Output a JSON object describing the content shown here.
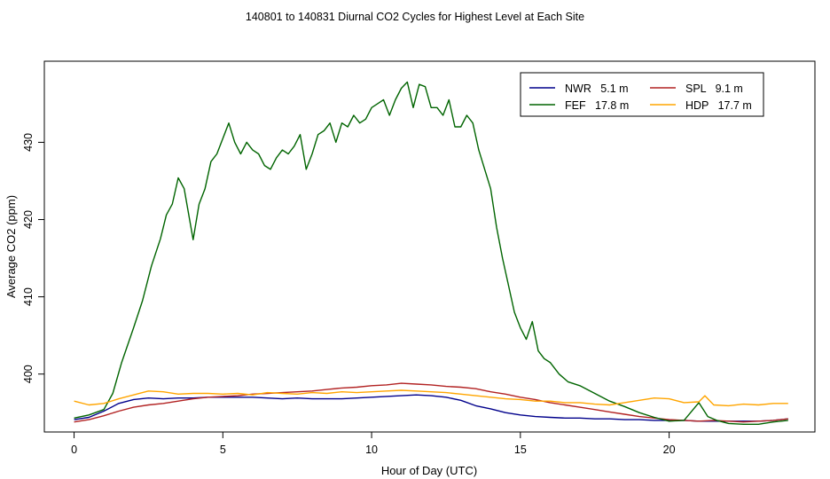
{
  "chart_data": {
    "type": "line",
    "title": "140801  to  140831 Diurnal CO2 Cycles for Highest Level at Each Site",
    "xlabel": "Hour of Day (UTC)",
    "ylabel": "Average CO2 (ppm)",
    "xlim": [
      -1,
      24.9
    ],
    "ylim": [
      392.5,
      440.5
    ],
    "xticks": [
      0,
      5,
      10,
      15,
      20
    ],
    "yticks": [
      400,
      410,
      420,
      430
    ],
    "grid": false,
    "legend_position": "top-right",
    "series": [
      {
        "name": "NWR",
        "label": "NWR   5.1 m",
        "color": "#00008b",
        "points": [
          [
            0,
            394.1
          ],
          [
            0.5,
            394.4
          ],
          [
            1,
            395.2
          ],
          [
            1.5,
            396.2
          ],
          [
            2,
            396.7
          ],
          [
            2.5,
            396.9
          ],
          [
            3,
            396.8
          ],
          [
            3.5,
            396.9
          ],
          [
            4,
            396.9
          ],
          [
            4.5,
            397.0
          ],
          [
            5,
            397.0
          ],
          [
            5.5,
            397.0
          ],
          [
            6,
            397.0
          ],
          [
            6.5,
            396.9
          ],
          [
            7,
            396.8
          ],
          [
            7.5,
            396.9
          ],
          [
            8,
            396.8
          ],
          [
            8.5,
            396.8
          ],
          [
            9,
            396.8
          ],
          [
            9.5,
            396.9
          ],
          [
            10,
            397.0
          ],
          [
            10.5,
            397.1
          ],
          [
            11,
            397.2
          ],
          [
            11.5,
            397.3
          ],
          [
            12,
            397.2
          ],
          [
            12.5,
            397.0
          ],
          [
            13,
            396.6
          ],
          [
            13.5,
            395.9
          ],
          [
            14,
            395.5
          ],
          [
            14.5,
            395.0
          ],
          [
            15,
            394.7
          ],
          [
            15.5,
            394.5
          ],
          [
            16,
            394.4
          ],
          [
            16.5,
            394.3
          ],
          [
            17,
            394.3
          ],
          [
            17.5,
            394.2
          ],
          [
            18,
            394.2
          ],
          [
            18.5,
            394.1
          ],
          [
            19,
            394.1
          ],
          [
            19.5,
            394.0
          ],
          [
            20,
            394.0
          ],
          [
            20.5,
            394.0
          ],
          [
            21,
            393.9
          ],
          [
            21.5,
            393.9
          ],
          [
            22,
            393.9
          ],
          [
            22.5,
            393.9
          ],
          [
            23,
            393.9
          ],
          [
            23.5,
            394.0
          ],
          [
            24,
            394.2
          ]
        ]
      },
      {
        "name": "SPL",
        "label": "SPL   9.1 m",
        "color": "#b22222",
        "points": [
          [
            0,
            393.8
          ],
          [
            0.5,
            394.1
          ],
          [
            1,
            394.6
          ],
          [
            1.5,
            395.2
          ],
          [
            2,
            395.7
          ],
          [
            2.5,
            396.0
          ],
          [
            3,
            396.2
          ],
          [
            3.5,
            396.5
          ],
          [
            4,
            396.8
          ],
          [
            4.5,
            397.0
          ],
          [
            5,
            397.1
          ],
          [
            5.5,
            397.2
          ],
          [
            6,
            397.4
          ],
          [
            6.5,
            397.5
          ],
          [
            7,
            397.6
          ],
          [
            7.5,
            397.7
          ],
          [
            8,
            397.8
          ],
          [
            8.5,
            398.0
          ],
          [
            9,
            398.2
          ],
          [
            9.5,
            398.3
          ],
          [
            10,
            398.5
          ],
          [
            10.5,
            398.6
          ],
          [
            11,
            398.8
          ],
          [
            11.5,
            398.7
          ],
          [
            12,
            398.6
          ],
          [
            12.5,
            398.4
          ],
          [
            13,
            398.3
          ],
          [
            13.5,
            398.1
          ],
          [
            14,
            397.7
          ],
          [
            14.5,
            397.4
          ],
          [
            15,
            397.0
          ],
          [
            15.5,
            396.7
          ],
          [
            16,
            396.3
          ],
          [
            16.5,
            396.0
          ],
          [
            17,
            395.7
          ],
          [
            17.5,
            395.4
          ],
          [
            18,
            395.1
          ],
          [
            18.5,
            394.8
          ],
          [
            19,
            394.5
          ],
          [
            19.5,
            394.3
          ],
          [
            20,
            394.1
          ],
          [
            20.5,
            394.0
          ],
          [
            21,
            393.9
          ],
          [
            21.5,
            394.0
          ],
          [
            22,
            393.9
          ],
          [
            22.5,
            393.8
          ],
          [
            23,
            393.9
          ],
          [
            23.5,
            394.0
          ],
          [
            24,
            394.2
          ]
        ]
      },
      {
        "name": "FEF",
        "label": "FEF   17.8 m",
        "color": "#006400",
        "points": [
          [
            0,
            394.3
          ],
          [
            0.5,
            394.7
          ],
          [
            1,
            395.4
          ],
          [
            1.3,
            397.5
          ],
          [
            1.6,
            401.5
          ],
          [
            2,
            406
          ],
          [
            2.3,
            409.5
          ],
          [
            2.6,
            414
          ],
          [
            2.9,
            417.5
          ],
          [
            3.1,
            420.6
          ],
          [
            3.3,
            422
          ],
          [
            3.5,
            425.4
          ],
          [
            3.7,
            424
          ],
          [
            4,
            417.4
          ],
          [
            4.2,
            422
          ],
          [
            4.4,
            424
          ],
          [
            4.6,
            427.5
          ],
          [
            4.8,
            428.5
          ],
          [
            5,
            430.5
          ],
          [
            5.2,
            432.5
          ],
          [
            5.4,
            430
          ],
          [
            5.6,
            428.5
          ],
          [
            5.8,
            430
          ],
          [
            6,
            429
          ],
          [
            6.2,
            428.5
          ],
          [
            6.4,
            427
          ],
          [
            6.6,
            426.5
          ],
          [
            6.8,
            428
          ],
          [
            7,
            429
          ],
          [
            7.2,
            428.5
          ],
          [
            7.4,
            429.5
          ],
          [
            7.6,
            431
          ],
          [
            7.8,
            426.5
          ],
          [
            8,
            428.5
          ],
          [
            8.2,
            431
          ],
          [
            8.4,
            431.5
          ],
          [
            8.6,
            432.5
          ],
          [
            8.8,
            430
          ],
          [
            9,
            432.5
          ],
          [
            9.2,
            432
          ],
          [
            9.4,
            433.5
          ],
          [
            9.6,
            432.5
          ],
          [
            9.8,
            433
          ],
          [
            10,
            434.5
          ],
          [
            10.2,
            435
          ],
          [
            10.4,
            435.5
          ],
          [
            10.6,
            433.5
          ],
          [
            10.8,
            435.5
          ],
          [
            11,
            437
          ],
          [
            11.2,
            437.8
          ],
          [
            11.4,
            434.5
          ],
          [
            11.6,
            437.5
          ],
          [
            11.8,
            437.2
          ],
          [
            12,
            434.5
          ],
          [
            12.2,
            434.5
          ],
          [
            12.4,
            433.5
          ],
          [
            12.6,
            435.5
          ],
          [
            12.8,
            432
          ],
          [
            13,
            432
          ],
          [
            13.2,
            433.5
          ],
          [
            13.4,
            432.5
          ],
          [
            13.6,
            429
          ],
          [
            13.8,
            426.5
          ],
          [
            14,
            424
          ],
          [
            14.2,
            419
          ],
          [
            14.4,
            415
          ],
          [
            14.6,
            411.5
          ],
          [
            14.8,
            408
          ],
          [
            15,
            406
          ],
          [
            15.2,
            404.5
          ],
          [
            15.4,
            406.8
          ],
          [
            15.6,
            403
          ],
          [
            15.8,
            402
          ],
          [
            16,
            401.5
          ],
          [
            16.3,
            400
          ],
          [
            16.6,
            399
          ],
          [
            17,
            398.5
          ],
          [
            17.5,
            397.5
          ],
          [
            18,
            396.5
          ],
          [
            18.5,
            395.8
          ],
          [
            19,
            395.0
          ],
          [
            19.5,
            394.4
          ],
          [
            20,
            393.9
          ],
          [
            20.5,
            394.0
          ],
          [
            21,
            396.3
          ],
          [
            21.3,
            394.5
          ],
          [
            21.6,
            394.0
          ],
          [
            22,
            393.6
          ],
          [
            22.5,
            393.5
          ],
          [
            23,
            393.5
          ],
          [
            23.5,
            393.8
          ],
          [
            24,
            394.0
          ]
        ]
      },
      {
        "name": "HDP",
        "label": "HDP   17.7 m",
        "color": "#ffa500",
        "points": [
          [
            0,
            396.5
          ],
          [
            0.5,
            396.0
          ],
          [
            1,
            396.2
          ],
          [
            1.5,
            396.8
          ],
          [
            2,
            397.3
          ],
          [
            2.5,
            397.8
          ],
          [
            3,
            397.7
          ],
          [
            3.5,
            397.4
          ],
          [
            4,
            397.5
          ],
          [
            4.5,
            397.5
          ],
          [
            5,
            397.4
          ],
          [
            5.5,
            397.5
          ],
          [
            6,
            397.3
          ],
          [
            6.5,
            397.6
          ],
          [
            7,
            397.5
          ],
          [
            7.5,
            397.4
          ],
          [
            8,
            397.6
          ],
          [
            8.5,
            397.5
          ],
          [
            9,
            397.7
          ],
          [
            9.5,
            397.6
          ],
          [
            10,
            397.7
          ],
          [
            10.5,
            397.8
          ],
          [
            11,
            397.9
          ],
          [
            11.5,
            397.8
          ],
          [
            12,
            397.7
          ],
          [
            12.5,
            397.6
          ],
          [
            13,
            397.4
          ],
          [
            13.5,
            397.2
          ],
          [
            14,
            397.0
          ],
          [
            14.5,
            396.8
          ],
          [
            15,
            396.7
          ],
          [
            15.5,
            396.5
          ],
          [
            16,
            396.5
          ],
          [
            16.5,
            396.3
          ],
          [
            17,
            396.3
          ],
          [
            17.5,
            396.1
          ],
          [
            18,
            396.0
          ],
          [
            18.5,
            396.3
          ],
          [
            19,
            396.6
          ],
          [
            19.5,
            396.9
          ],
          [
            20,
            396.8
          ],
          [
            20.5,
            396.3
          ],
          [
            21,
            396.4
          ],
          [
            21.2,
            397.2
          ],
          [
            21.5,
            396.0
          ],
          [
            22,
            395.9
          ],
          [
            22.5,
            396.1
          ],
          [
            23,
            396.0
          ],
          [
            23.5,
            396.2
          ],
          [
            24,
            396.2
          ]
        ]
      }
    ]
  }
}
